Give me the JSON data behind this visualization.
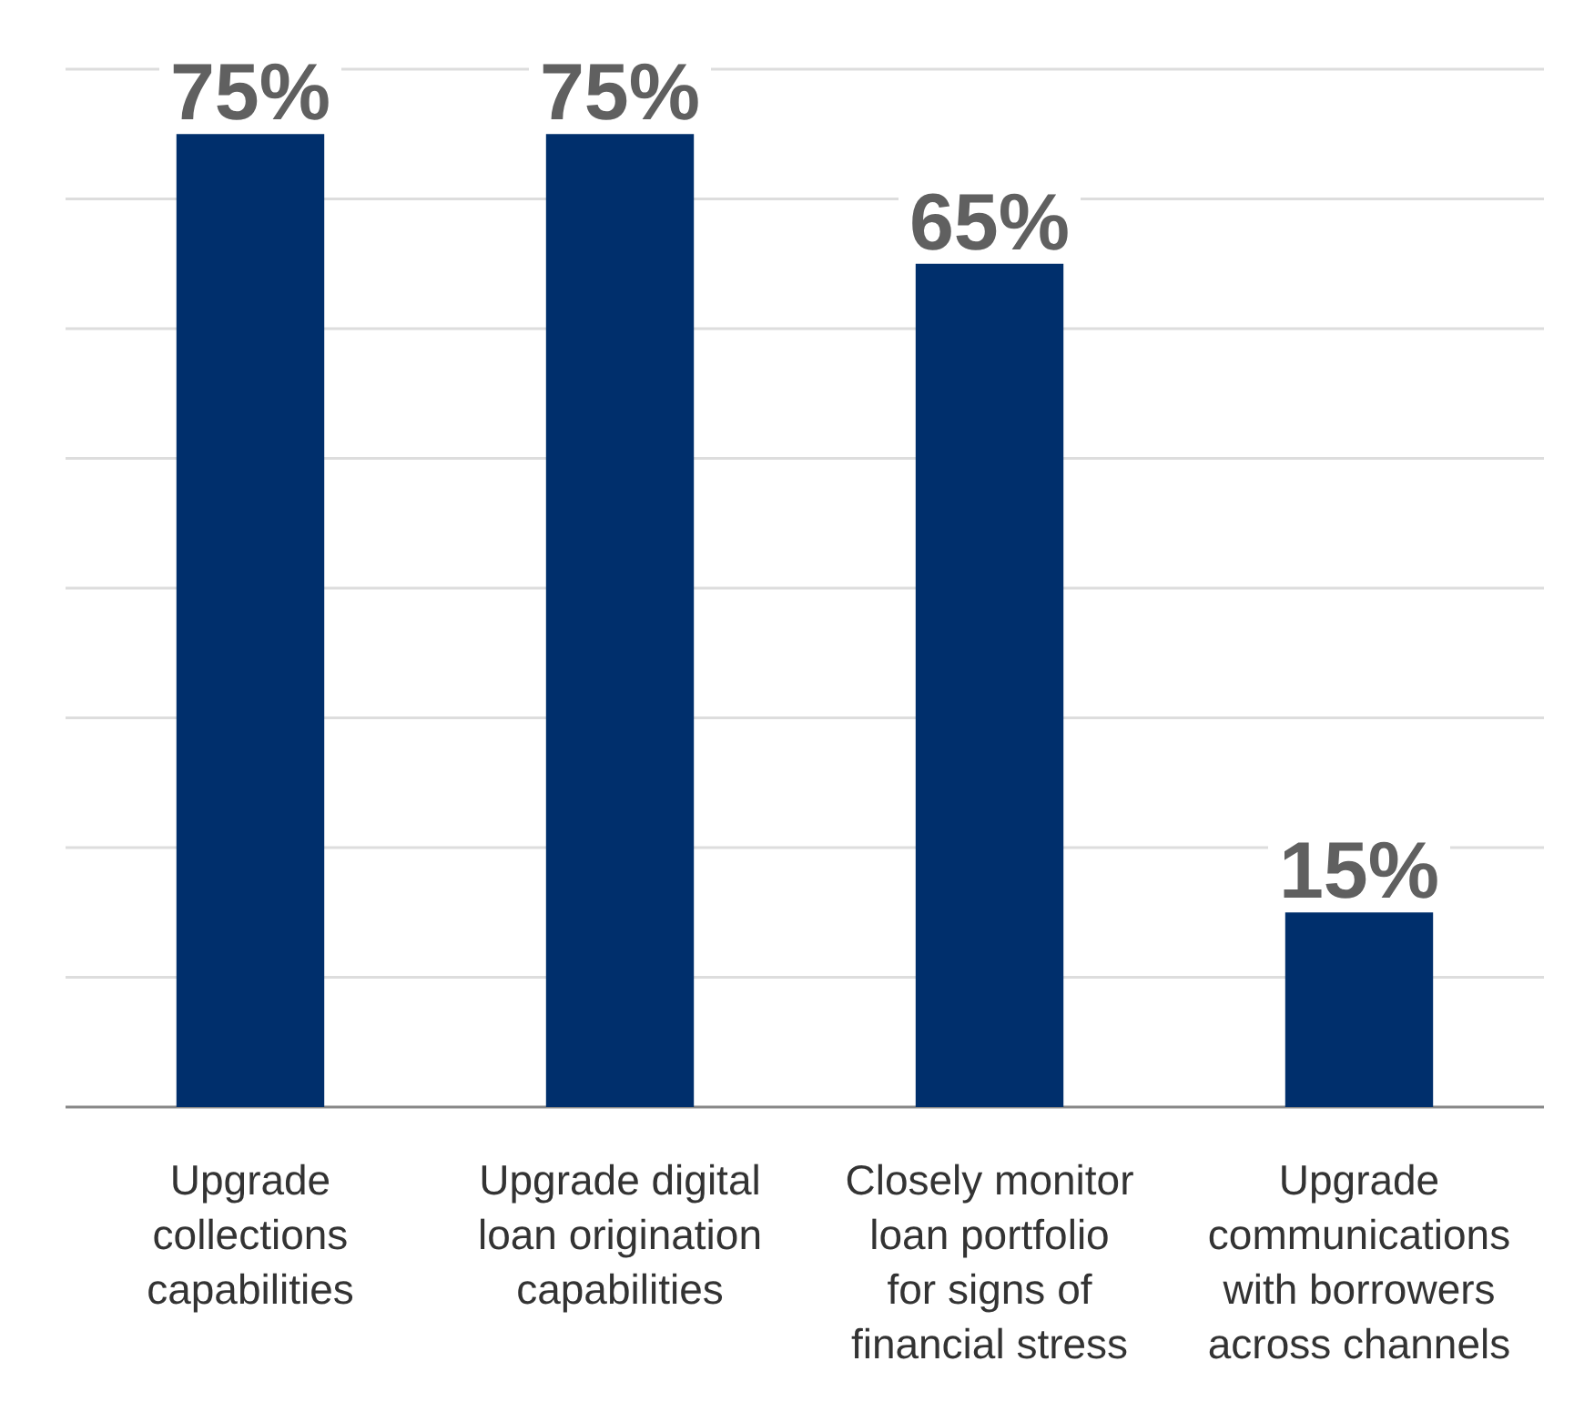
{
  "chart_data": {
    "type": "bar",
    "categories": [
      "Upgrade collections capabilities",
      "Upgrade digital loan origination capabilities",
      "Closely monitor loan portfolio for signs of financial stress",
      "Upgrade communications with borrowers across channels"
    ],
    "values": [
      75,
      75,
      65,
      15
    ],
    "value_labels": [
      "75%",
      "75%",
      "65%",
      "15%"
    ],
    "color": "#002f6c",
    "ylim": [
      0,
      80
    ],
    "yticks": [
      {
        "value": 0,
        "label": null
      },
      {
        "value": 10,
        "label": null
      },
      {
        "value": 20,
        "label": null
      },
      {
        "value": 30,
        "label": null
      },
      {
        "value": 40,
        "label": null
      },
      {
        "value": 50,
        "label": null
      },
      {
        "value": 60,
        "label": null
      },
      {
        "value": 70,
        "label": null
      },
      {
        "value": 80,
        "label": null
      }
    ],
    "grid": "y",
    "tick_labels": "x"
  }
}
